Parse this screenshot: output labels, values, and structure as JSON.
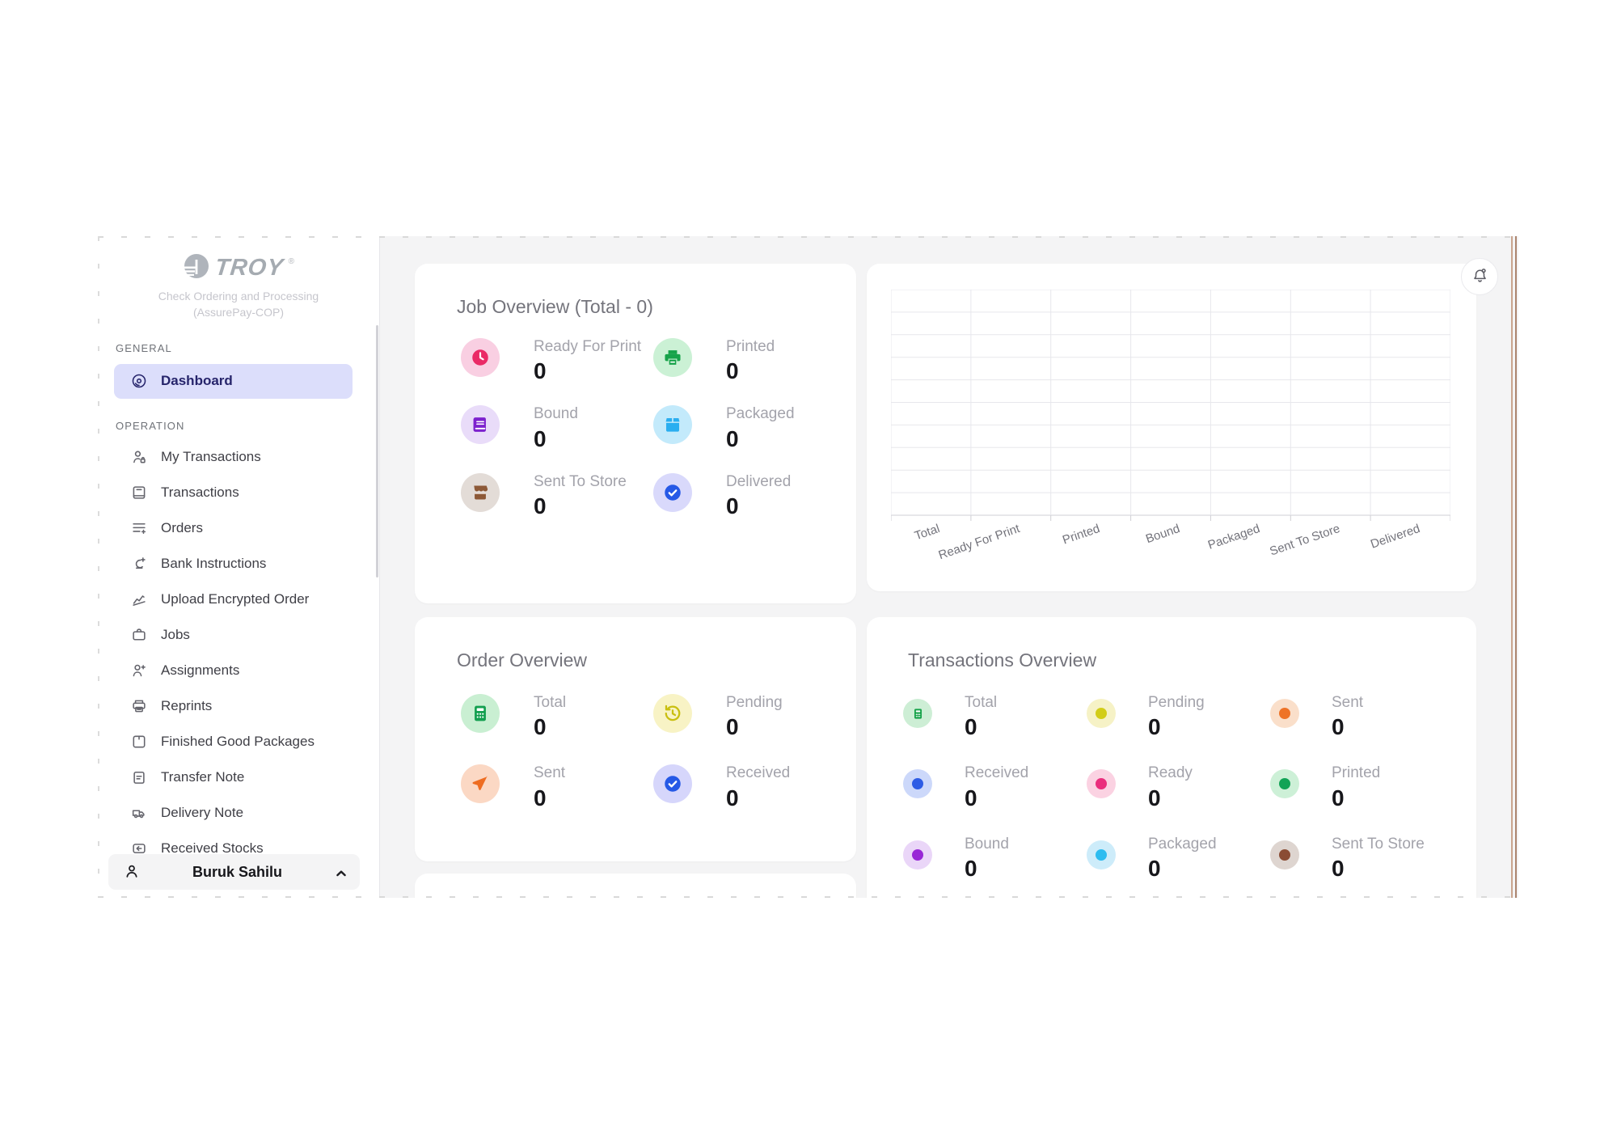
{
  "sidebar": {
    "logo": {
      "brand": "TROY",
      "reg": "®",
      "line1": "Check Ordering and Processing",
      "line2": "(AssurePay-COP)"
    },
    "sections": [
      {
        "label": "GENERAL",
        "items": [
          {
            "label": "Dashboard",
            "icon": "dashboard-icon",
            "active": true
          }
        ]
      },
      {
        "label": "OPERATION",
        "items": [
          {
            "label": "My Transactions",
            "icon": "person-bag-icon"
          },
          {
            "label": "Transactions",
            "icon": "notebook-icon"
          },
          {
            "label": "Orders",
            "icon": "list-plus-icon"
          },
          {
            "label": "Bank Instructions",
            "icon": "bank-plus-icon"
          },
          {
            "label": "Upload Encrypted Order",
            "icon": "signature-icon"
          },
          {
            "label": "Jobs",
            "icon": "briefcase-icon"
          },
          {
            "label": "Assignments",
            "icon": "person-plus-icon"
          },
          {
            "label": "Reprints",
            "icon": "printer-outline-icon"
          },
          {
            "label": "Finished Good Packages",
            "icon": "package-icon"
          },
          {
            "label": "Transfer Note",
            "icon": "clipboard-icon"
          },
          {
            "label": "Delivery Note",
            "icon": "truck-icon"
          },
          {
            "label": "Received Stocks",
            "icon": "arrow-left-box-icon"
          }
        ]
      }
    ],
    "user": {
      "name": "Buruk Sahilu",
      "icon": "user-icon",
      "chevron": "chevron-up-icon"
    }
  },
  "header": {
    "bell_icon": "bell-icon"
  },
  "main": {
    "job_overview": {
      "title": "Job Overview (Total - 0)",
      "stats": [
        {
          "label": "Ready For Print",
          "value": "0",
          "icon": "clock-icon",
          "bg": "#f9cfe2",
          "fg": "#ea2a66"
        },
        {
          "label": "Printed",
          "value": "0",
          "icon": "printer-icon",
          "bg": "#cbf1d5",
          "fg": "#17a34a"
        },
        {
          "label": "Bound",
          "value": "0",
          "icon": "book-icon",
          "bg": "#e9dcf9",
          "fg": "#7d22ce"
        },
        {
          "label": "Packaged",
          "value": "0",
          "icon": "box-icon",
          "bg": "#c3eafb",
          "fg": "#2aaef0"
        },
        {
          "label": "Sent To Store",
          "value": "0",
          "icon": "store-icon",
          "bg": "#e3dcd7",
          "fg": "#8d5937"
        },
        {
          "label": "Delivered",
          "value": "0",
          "icon": "check-circle-icon",
          "bg": "#d9d9fb",
          "fg": "#2659e6"
        }
      ]
    },
    "order_overview": {
      "title": "Order Overview",
      "stats": [
        {
          "label": "Total",
          "value": "0",
          "icon": "calculator-icon",
          "bg": "#c9efd2",
          "fg": "#14a050"
        },
        {
          "label": "Pending",
          "value": "0",
          "icon": "history-icon",
          "bg": "#f8f3c5",
          "fg": "#c9bf10"
        },
        {
          "label": "Sent",
          "value": "0",
          "icon": "paper-plane-icon",
          "bg": "#fbd8c4",
          "fg": "#ee6d22"
        },
        {
          "label": "Received",
          "value": "0",
          "icon": "check-circle-icon",
          "bg": "#d6d6fb",
          "fg": "#2659e6"
        }
      ]
    },
    "transactions_overview": {
      "title": "Transactions Overview",
      "stats": [
        {
          "label": "Total",
          "value": "0",
          "icon": "calculator-dot-icon",
          "halo": "#cdeed5",
          "fg": "#17a34a"
        },
        {
          "label": "Pending",
          "value": "0",
          "icon": "dot-icon",
          "halo": "#f6f2c6",
          "fg": "#d2cd18"
        },
        {
          "label": "Sent",
          "value": "0",
          "icon": "dot-icon",
          "halo": "#fadfca",
          "fg": "#ee7327"
        },
        {
          "label": "Received",
          "value": "0",
          "icon": "dot-icon",
          "halo": "#ccd8fa",
          "fg": "#2d5ce5"
        },
        {
          "label": "Ready",
          "value": "0",
          "icon": "dot-icon",
          "halo": "#fbd2e2",
          "fg": "#ea2e7d"
        },
        {
          "label": "Printed",
          "value": "0",
          "icon": "dot-icon",
          "halo": "#cdf0d7",
          "fg": "#12a356"
        },
        {
          "label": "Bound",
          "value": "0",
          "icon": "dot-icon",
          "halo": "#ead6f8",
          "fg": "#9827d6"
        },
        {
          "label": "Packaged",
          "value": "0",
          "icon": "dot-icon",
          "halo": "#cdecfa",
          "fg": "#2cbcf0"
        },
        {
          "label": "Sent To Store",
          "value": "0",
          "icon": "dot-icon",
          "halo": "#ded5d0",
          "fg": "#8a4c34"
        }
      ]
    }
  },
  "chart_data": {
    "type": "bar",
    "title": "",
    "xlabel": "",
    "ylabel": "",
    "categories": [
      "Total",
      "Ready For Print",
      "Printed",
      "Bound",
      "Packaged",
      "Sent To Store",
      "Delivered"
    ],
    "values": [
      0,
      0,
      0,
      0,
      0,
      0,
      0
    ],
    "ylim": [
      0,
      10
    ],
    "grid": true,
    "grid_rows": 10,
    "y_tick_labels": [],
    "legend": false,
    "x_label_rotation_deg": -19
  }
}
